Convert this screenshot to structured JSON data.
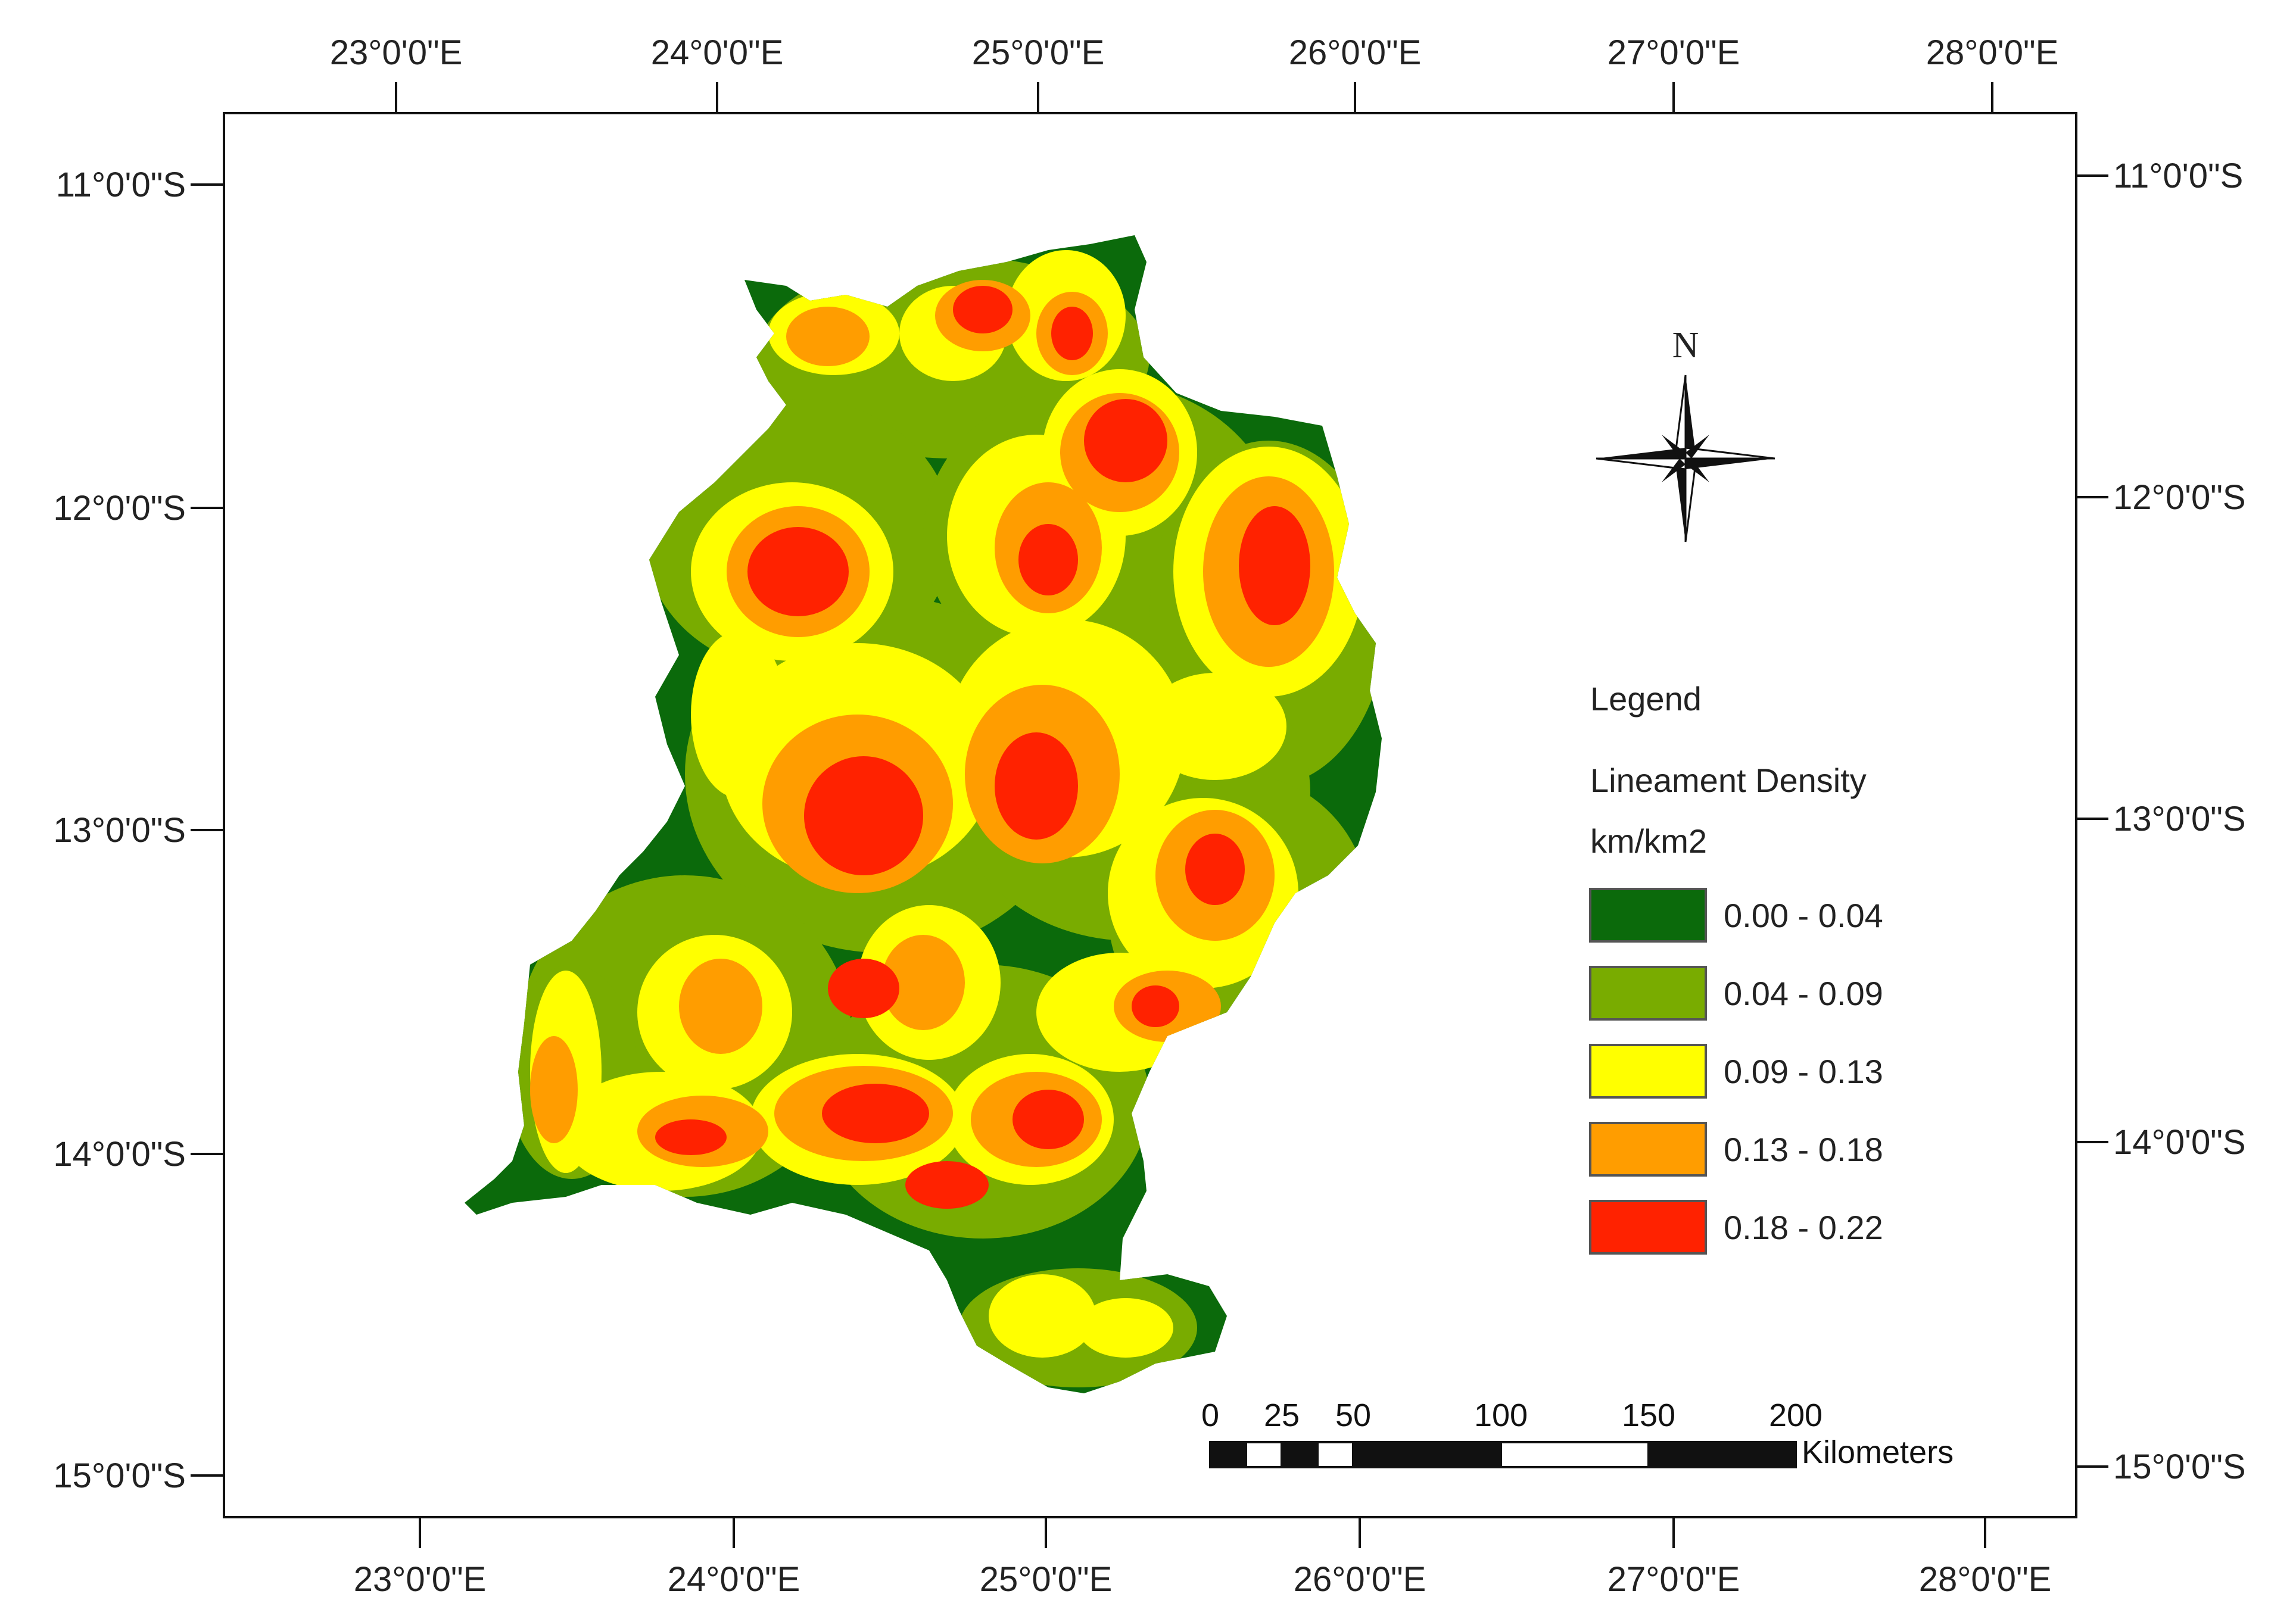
{
  "lon_labels_top": [
    "23°0'0\"E",
    "24°0'0\"E",
    "25°0'0\"E",
    "26°0'0\"E",
    "27°0'0\"E",
    "28°0'0\"E"
  ],
  "lon_labels_bottom": [
    "23°0'0\"E",
    "24°0'0\"E",
    "25°0'0\"E",
    "26°0'0\"E",
    "27°0'0\"E",
    "28°0'0\"E"
  ],
  "lat_labels_left": [
    "11°0'0\"S",
    "12°0'0\"S",
    "13°0'0\"S",
    "14°0'0\"S",
    "15°0'0\"S"
  ],
  "lat_labels_right": [
    "11°0'0\"S",
    "12°0'0\"S",
    "13°0'0\"S",
    "14°0'0\"S",
    "15°0'0\"S"
  ],
  "north_arrow": {
    "label": "N",
    "icon": "compass-rose-icon"
  },
  "legend": {
    "title": "Legend",
    "layer": "Lineament Density",
    "unit": "km/km2",
    "classes": [
      {
        "label": "0.00 - 0.04",
        "color": "#0b6a0b"
      },
      {
        "label": "0.04 - 0.09",
        "color": "#79ac00"
      },
      {
        "label": "0.09 - 0.13",
        "color": "#ffff00"
      },
      {
        "label": "0.13 - 0.18",
        "color": "#ff9d00"
      },
      {
        "label": "0.18 - 0.22",
        "color": "#ff2200"
      }
    ]
  },
  "scale_bar": {
    "ticks": [
      "0",
      "25",
      "50",
      "100",
      "150",
      "200"
    ],
    "unit": "Kilometers"
  }
}
